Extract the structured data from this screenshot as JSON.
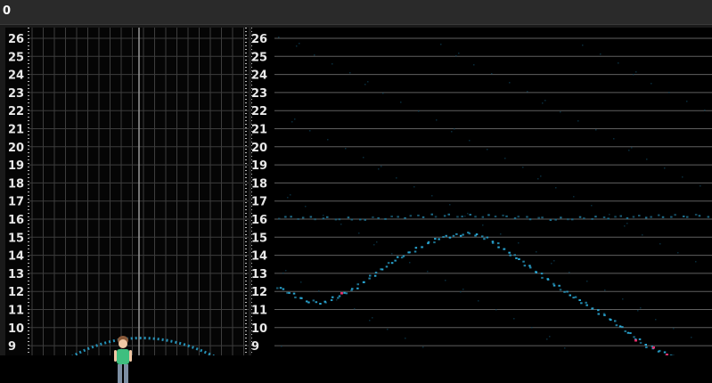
{
  "window": {
    "title_fragment": "0"
  },
  "left_axis": {
    "ticks": [
      "26",
      "25",
      "24",
      "23",
      "22",
      "21",
      "20",
      "19",
      "18",
      "17",
      "16",
      "15",
      "14",
      "13",
      "12",
      "11",
      "10",
      "9"
    ]
  },
  "right_axis": {
    "ticks": [
      "26",
      "25",
      "24",
      "23",
      "22",
      "21",
      "20",
      "19",
      "18",
      "17",
      "16",
      "15",
      "14",
      "13",
      "12",
      "11",
      "10",
      "9"
    ]
  },
  "colors": {
    "background": "#000000",
    "grid": "#7a7a7a",
    "echo": "#2aa9d6",
    "echo_hot": "#e0306a",
    "tick_text": "#e8e8e8"
  },
  "icons": {
    "person": "person-icon"
  }
}
